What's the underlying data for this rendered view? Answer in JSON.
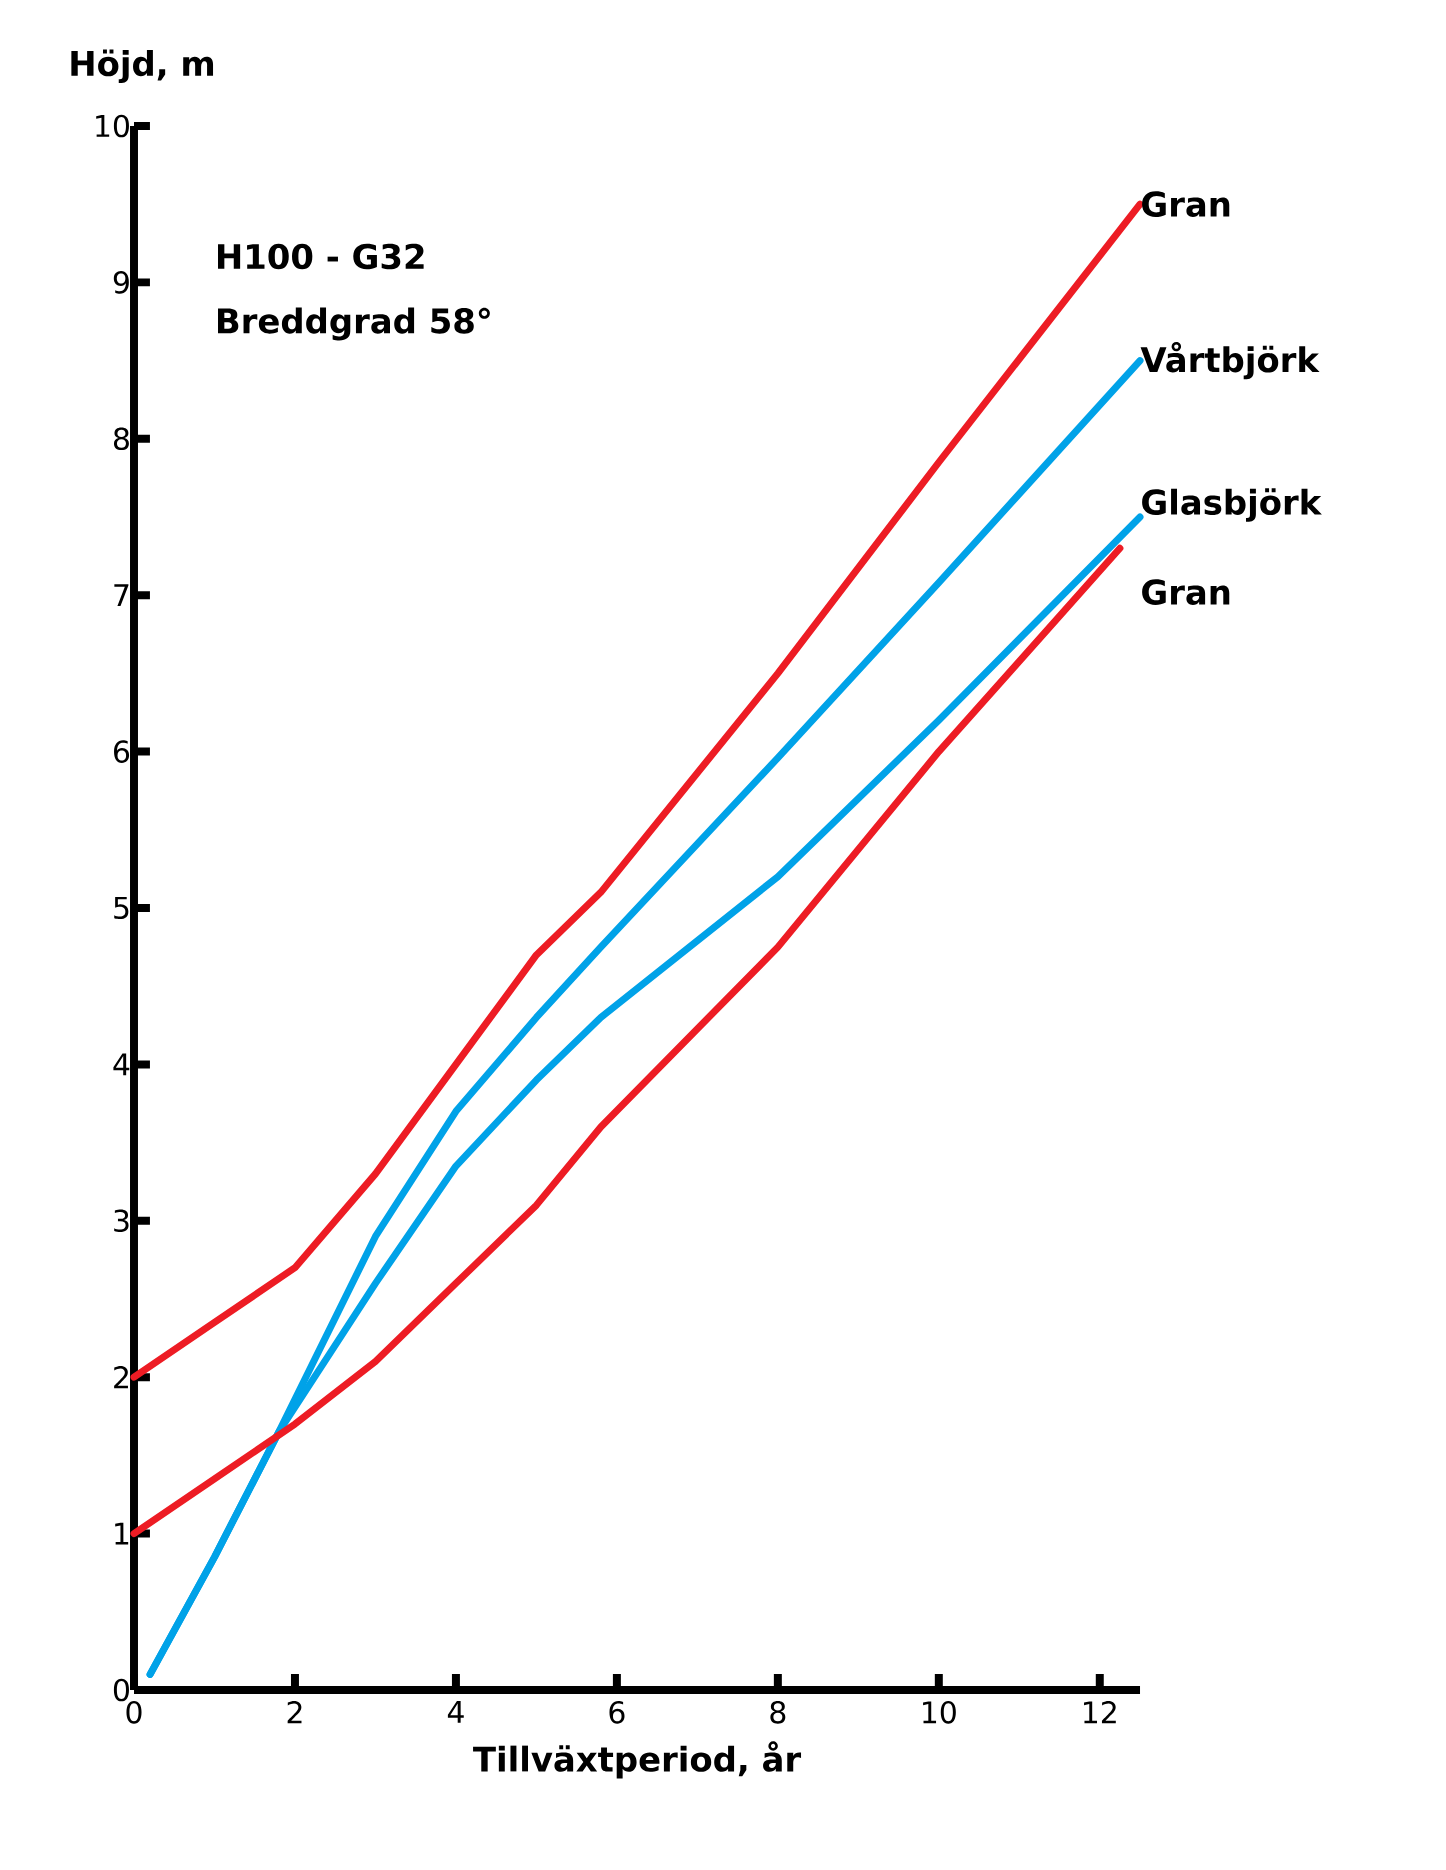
{
  "chart_data": {
    "type": "line",
    "xlabel": "Tillväxtperiod, år",
    "ylabel": "Höjd, m",
    "annotations": [
      "H100 - G32",
      "Breddgrad 58°"
    ],
    "xlim": [
      0,
      12.5
    ],
    "ylim": [
      0,
      10
    ],
    "xticks": [
      0,
      2,
      4,
      6,
      8,
      10,
      12
    ],
    "yticks": [
      0,
      1,
      2,
      3,
      4,
      5,
      6,
      7,
      8,
      9,
      10
    ],
    "grid": false,
    "marker": "none",
    "line_style": "solid",
    "series": [
      {
        "name": "Gran",
        "color": "#ed1c24",
        "x": [
          0,
          1,
          2,
          3,
          4,
          5,
          5.8,
          8,
          10,
          12.5
        ],
        "values": [
          2,
          2.35,
          2.7,
          3.3,
          4.0,
          4.7,
          5.1,
          6.5,
          7.85,
          9.5
        ]
      },
      {
        "name": "Vårtbjörk",
        "color": "#00a2e8",
        "x": [
          0.2,
          1,
          1.8,
          3,
          4,
          5,
          5.8,
          8,
          10,
          12.5
        ],
        "values": [
          0.1,
          0.85,
          1.65,
          2.9,
          3.7,
          4.3,
          4.75,
          5.96,
          7.08,
          8.5
        ]
      },
      {
        "name": "Glasbjörk",
        "color": "#00a2e8",
        "x": [
          0.2,
          1,
          1.8,
          3,
          4,
          5,
          5.8,
          8,
          10,
          12.5
        ],
        "values": [
          0.1,
          0.85,
          1.65,
          2.6,
          3.35,
          3.9,
          4.3,
          5.2,
          6.2,
          7.5
        ]
      },
      {
        "name": "Gran",
        "color": "#ed1c24",
        "x": [
          0,
          1,
          2,
          3,
          4,
          5,
          5.8,
          8,
          10,
          12.25
        ],
        "values": [
          1,
          1.35,
          1.7,
          2.1,
          2.6,
          3.1,
          3.6,
          4.75,
          6.0,
          7.3
        ]
      }
    ]
  }
}
